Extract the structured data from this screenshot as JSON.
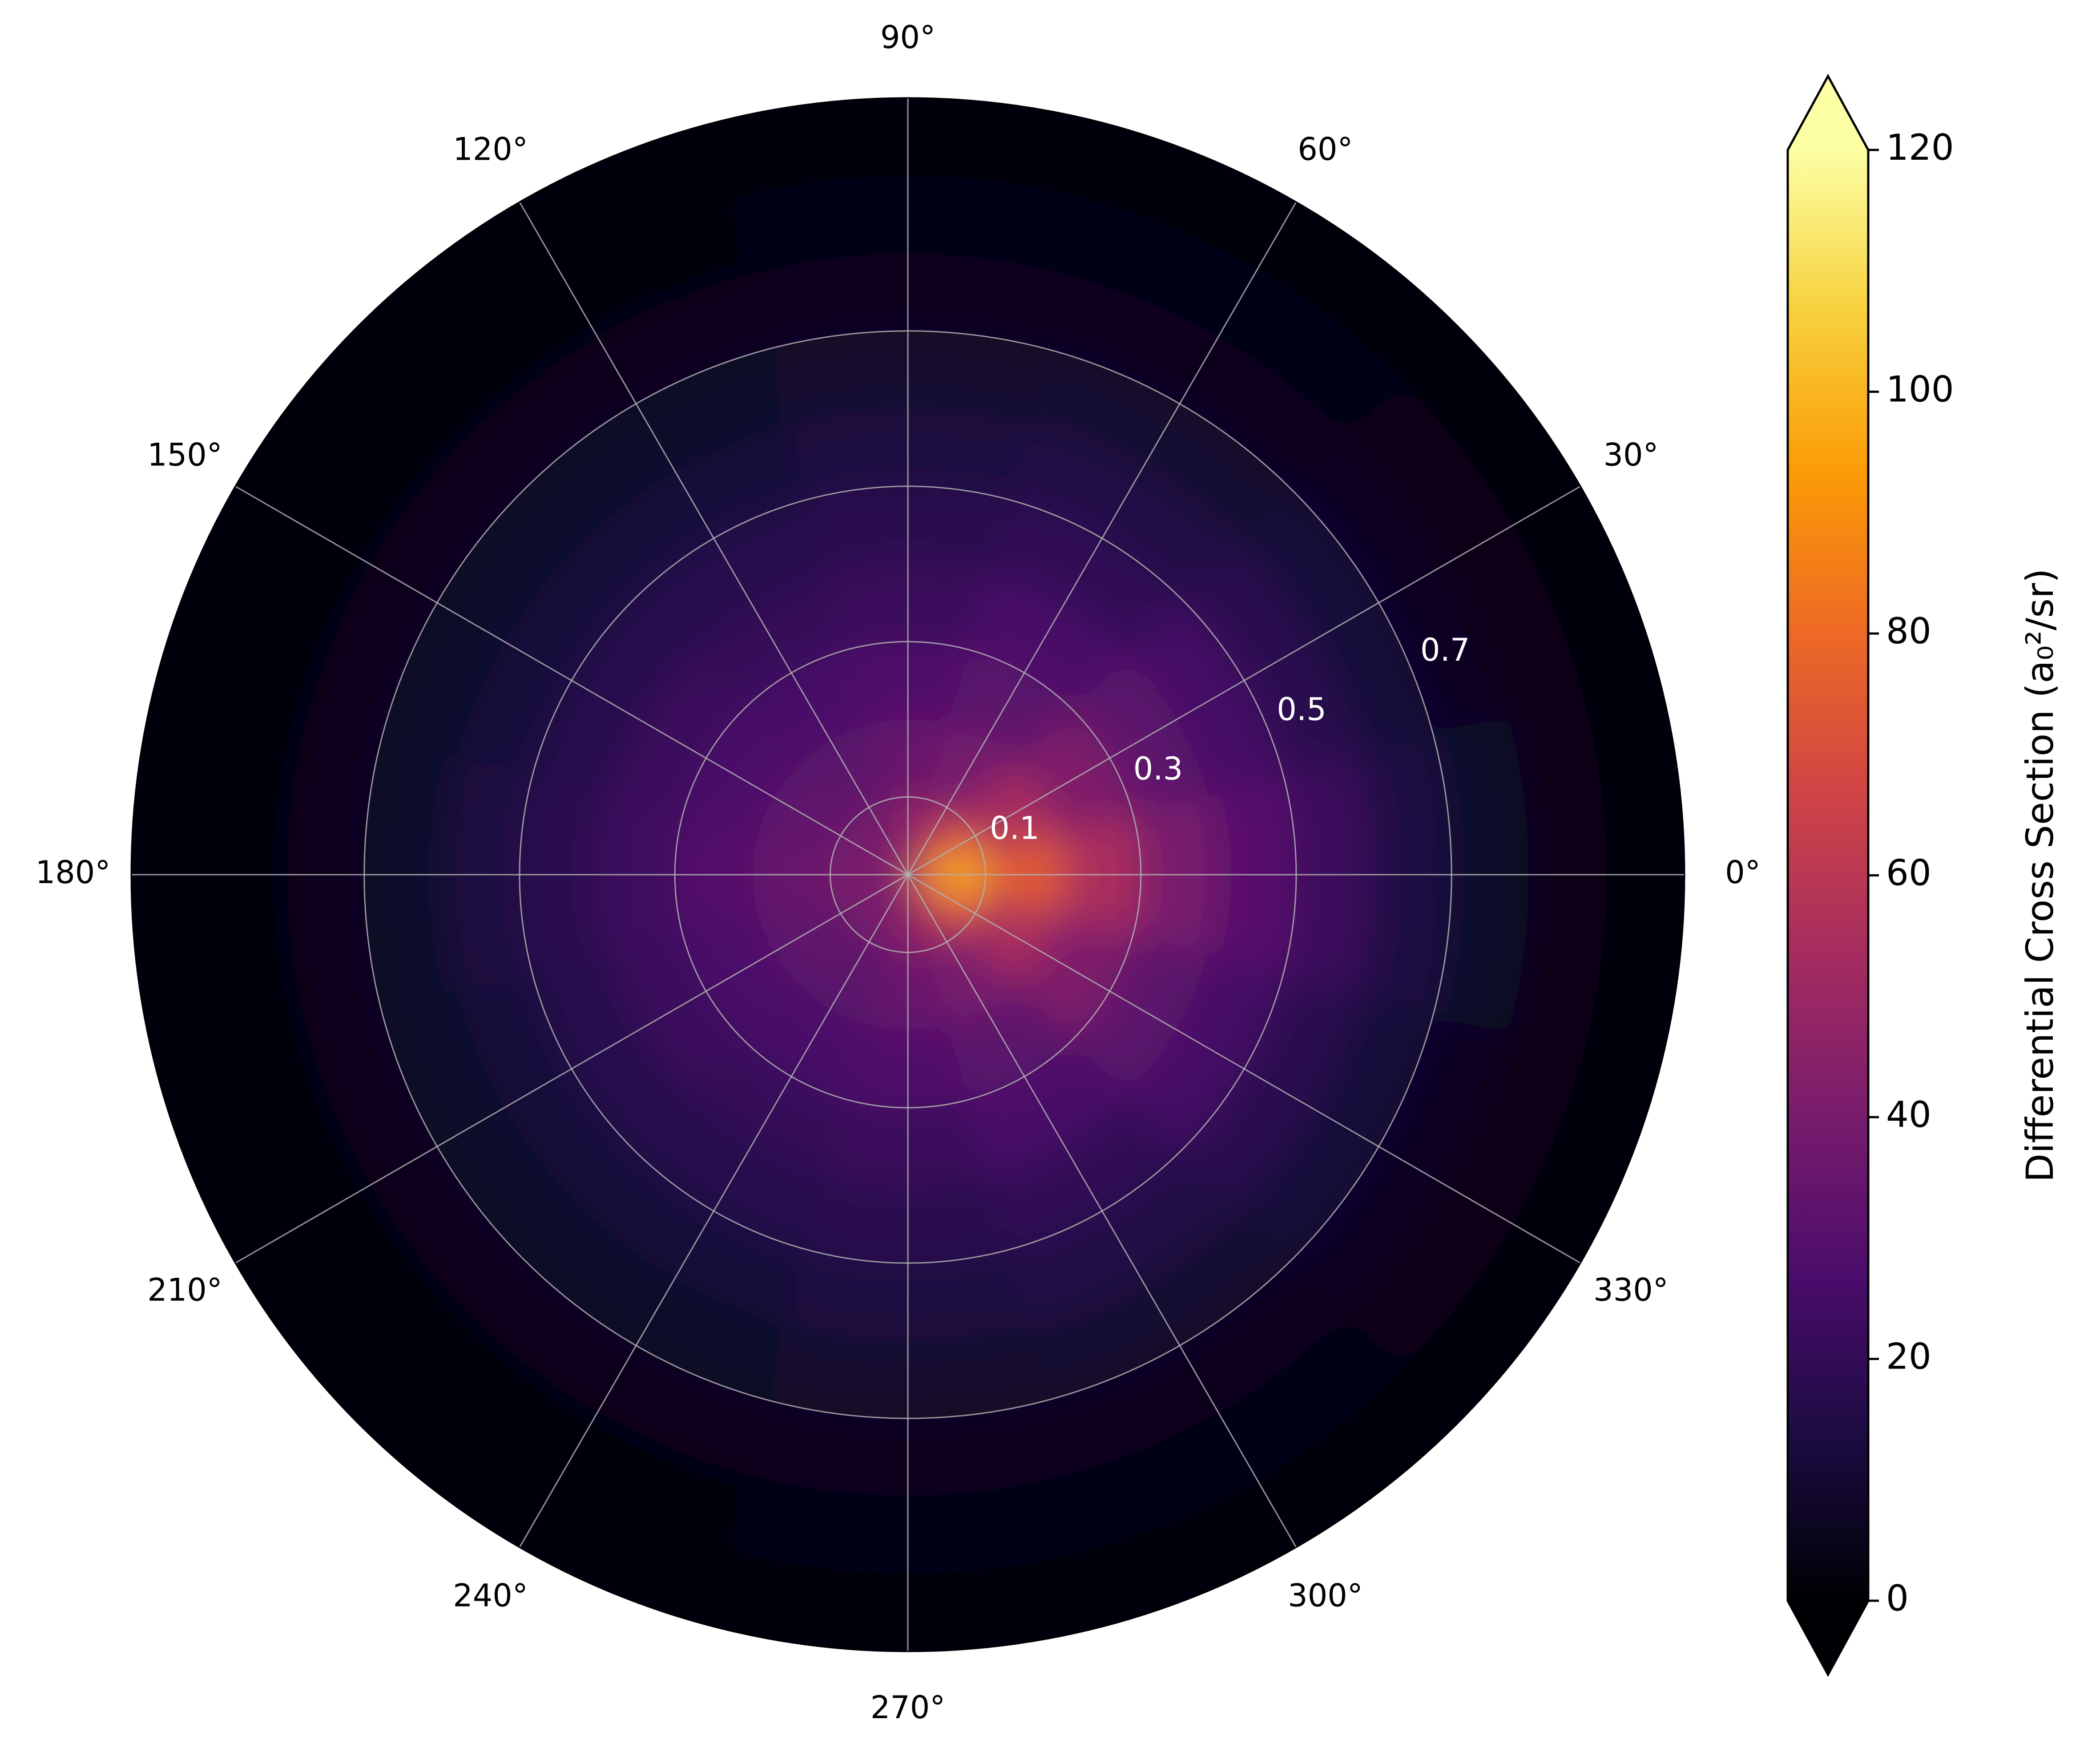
{
  "chart_data": {
    "type": "polar_heatmap",
    "theta_bins": [
      -15,
      15,
      45,
      75,
      105,
      135,
      165,
      195,
      225,
      255,
      285,
      315,
      345
    ],
    "r_bins": [
      0,
      0.1,
      0.2,
      0.3,
      0.4,
      0.5,
      0.6,
      0.7,
      0.8,
      0.9,
      1.0
    ],
    "values": [
      [
        100,
        75,
        55,
        40,
        30,
        22,
        14,
        8,
        4,
        2
      ],
      [
        80,
        55,
        42,
        32,
        25,
        18,
        12,
        7,
        4,
        2
      ],
      [
        55,
        40,
        32,
        26,
        20,
        15,
        10,
        6,
        3,
        1
      ],
      [
        45,
        35,
        28,
        22,
        18,
        13,
        9,
        5,
        3,
        1
      ],
      [
        40,
        32,
        26,
        21,
        17,
        12,
        8,
        5,
        2,
        1
      ],
      [
        40,
        33,
        27,
        22,
        17,
        12,
        8,
        5,
        2,
        1
      ],
      [
        42,
        35,
        29,
        23,
        18,
        13,
        8,
        5,
        2,
        1
      ],
      [
        40,
        33,
        27,
        22,
        17,
        12,
        8,
        5,
        2,
        1
      ],
      [
        40,
        32,
        26,
        21,
        17,
        12,
        8,
        5,
        2,
        1
      ],
      [
        45,
        35,
        28,
        22,
        18,
        13,
        9,
        5,
        3,
        1
      ],
      [
        55,
        40,
        32,
        26,
        20,
        15,
        10,
        6,
        3,
        1
      ],
      [
        80,
        55,
        42,
        32,
        25,
        18,
        12,
        7,
        4,
        2
      ]
    ],
    "thetaticks": [
      {
        "value": 0,
        "label": "0°"
      },
      {
        "value": 30,
        "label": "30°"
      },
      {
        "value": 60,
        "label": "60°"
      },
      {
        "value": 90,
        "label": "90°"
      },
      {
        "value": 120,
        "label": "120°"
      },
      {
        "value": 150,
        "label": "150°"
      },
      {
        "value": 180,
        "label": "180°"
      },
      {
        "value": 210,
        "label": "210°"
      },
      {
        "value": 240,
        "label": "240°"
      },
      {
        "value": 270,
        "label": "270°"
      },
      {
        "value": 300,
        "label": "300°"
      },
      {
        "value": 330,
        "label": "330°"
      }
    ],
    "rlim": [
      0,
      1.0
    ],
    "rticks": [
      0.1,
      0.3,
      0.5,
      0.7
    ],
    "grid": true,
    "colormap": [
      "#000004",
      "#1b0c41",
      "#4a0c6b",
      "#781c6d",
      "#a52c60",
      "#cf4446",
      "#ed6925",
      "#fb9b06",
      "#f7d13d",
      "#fcffa4"
    ],
    "colorbar": {
      "label": "Differential Cross Section (a₀²/sr)",
      "lim": [
        0,
        120
      ],
      "ticks": [
        0,
        20,
        40,
        60,
        80,
        100,
        120
      ],
      "extend": "both"
    }
  }
}
